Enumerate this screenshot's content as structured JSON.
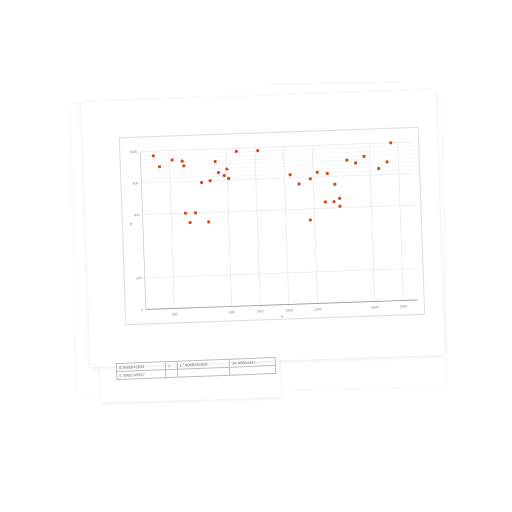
{
  "scene": {
    "background": "#ffffff",
    "paper_color": "#ffffff",
    "grid_color": "#e4e4e4",
    "marker_color": "#d94a1e"
  },
  "chart_data": {
    "type": "scatter",
    "title": "",
    "xlabel": "A",
    "ylabel": "B",
    "xlim": [
      0,
      1900
    ],
    "ylim": [
      0,
      1000
    ],
    "x_ticks": [
      "200",
      "600",
      "800",
      "1000",
      "1200",
      "1600",
      "1800"
    ],
    "x_tick_values": [
      200,
      600,
      800,
      1000,
      1200,
      1600,
      1800
    ],
    "y_ticks": [
      "0",
      "200",
      "600",
      "800",
      "1000"
    ],
    "y_tick_values": [
      0,
      200,
      600,
      800,
      1000
    ],
    "series": [
      {
        "name": "points",
        "points": [
          [
            90,
            970
          ],
          [
            130,
            900
          ],
          [
            220,
            940
          ],
          [
            290,
            930
          ],
          [
            300,
            900
          ],
          [
            330,
            540
          ],
          [
            300,
            600
          ],
          [
            370,
            600
          ],
          [
            460,
            540
          ],
          [
            420,
            790
          ],
          [
            480,
            800
          ],
          [
            520,
            920
          ],
          [
            540,
            850
          ],
          [
            580,
            830
          ],
          [
            600,
            870
          ],
          [
            610,
            810
          ],
          [
            670,
            980
          ],
          [
            820,
            980
          ],
          [
            1040,
            820
          ],
          [
            1100,
            760
          ],
          [
            1180,
            790
          ],
          [
            1230,
            830
          ],
          [
            1300,
            820
          ],
          [
            1350,
            750
          ],
          [
            1170,
            530
          ],
          [
            1280,
            640
          ],
          [
            1340,
            640
          ],
          [
            1380,
            660
          ],
          [
            1380,
            610
          ],
          [
            1440,
            900
          ],
          [
            1500,
            880
          ],
          [
            1560,
            920
          ],
          [
            1660,
            840
          ],
          [
            1750,
            1000
          ],
          [
            1720,
            880
          ]
        ]
      }
    ]
  },
  "table_rows": [
    [
      "0.3685843094",
      "1",
      "17.4068242626",
      "34.40684441"
    ],
    [
      "0.4068240967",
      "",
      "",
      ""
    ]
  ]
}
